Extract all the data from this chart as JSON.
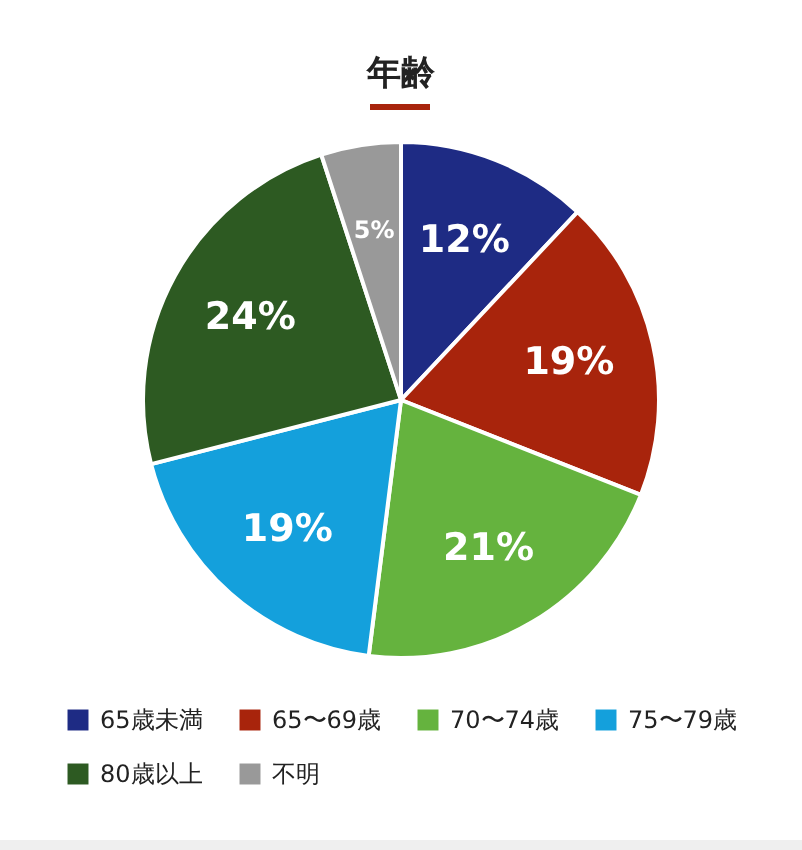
{
  "chart_data": {
    "type": "pie",
    "title": "年齢",
    "categories": [
      "65歳未満",
      "65〜69歳",
      "70〜74歳",
      "75〜79歳",
      "80歳以上",
      "不明"
    ],
    "values": [
      12,
      19,
      21,
      19,
      24,
      5
    ],
    "colors": [
      "#1e2b84",
      "#a8240c",
      "#65b33e",
      "#14a0dc",
      "#2d5a22",
      "#999999"
    ],
    "value_labels": [
      "12%",
      "19%",
      "21%",
      "19%",
      "24%",
      "5%"
    ],
    "legend": "bottom"
  }
}
